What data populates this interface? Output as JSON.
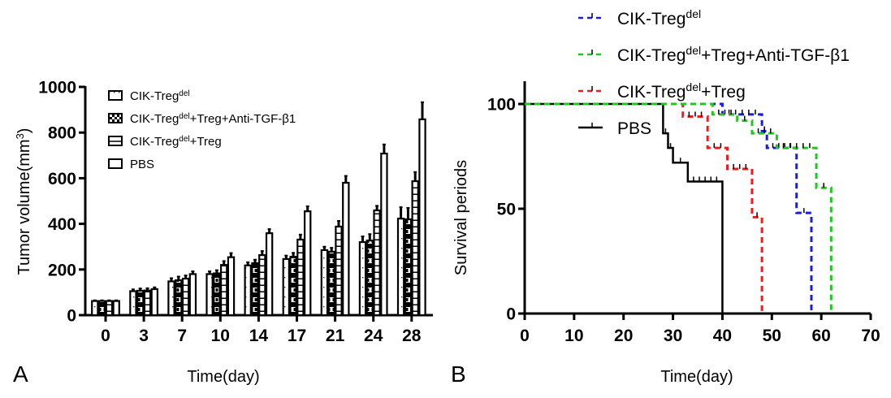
{
  "chart_data": [
    {
      "panel": "A",
      "type": "bar",
      "title": "",
      "xlabel": "Time(day)",
      "ylabel": "Tumor volume(mm³)",
      "ylabel_base": "Tumor volume(mm",
      "ylabel_sup": "3",
      "ylabel_end": ")",
      "ylim": [
        0,
        1000
      ],
      "yticks": [
        "0",
        "200",
        "400",
        "600",
        "800",
        "1000"
      ],
      "ytick_values": [
        0,
        200,
        400,
        600,
        800,
        1000
      ],
      "categories": [
        "0",
        "3",
        "7",
        "10",
        "14",
        "17",
        "21",
        "24",
        "28"
      ],
      "legend_position": "top-left",
      "series": [
        {
          "name": "CIK-Treg del",
          "label_base": "CIK-Treg",
          "label_sup": "del",
          "label_rest": "",
          "pattern": "dots",
          "values": [
            62,
            105,
            148,
            180,
            218,
            246,
            285,
            320,
            423
          ],
          "errors": [
            3,
            8,
            14,
            12,
            14,
            15,
            15,
            25,
            50
          ]
        },
        {
          "name": "CIK-Treg del + Treg + Anti-TGF-β1",
          "label_base": "CIK-Treg",
          "label_sup": "del",
          "label_rest": "+Treg+Anti-TGF-β1",
          "pattern": "checker",
          "values": [
            62,
            107,
            153,
            183,
            228,
            256,
            278,
            327,
            420
          ],
          "errors": [
            3,
            10,
            16,
            14,
            15,
            17,
            17,
            28,
            50
          ]
        },
        {
          "name": "CIK-Treg del + Treg",
          "label_base": "CIK-Treg",
          "label_sup": "del",
          "label_rest": "+Treg",
          "pattern": "hlines",
          "values": [
            62,
            108,
            160,
            220,
            263,
            331,
            388,
            459,
            587
          ],
          "errors": [
            3,
            10,
            14,
            17,
            18,
            22,
            25,
            20,
            40
          ]
        },
        {
          "name": "PBS",
          "label_base": "PBS",
          "label_sup": "",
          "label_rest": "",
          "pattern": "open",
          "values": [
            62,
            114,
            180,
            254,
            359,
            455,
            580,
            708,
            858
          ],
          "errors": [
            3,
            8,
            12,
            18,
            18,
            22,
            30,
            40,
            75
          ]
        }
      ],
      "panel_label": "A"
    },
    {
      "panel": "B",
      "type": "line",
      "subtype": "kaplan-meier step",
      "title": "",
      "xlabel": "Time(day)",
      "ylabel": "Survival periods",
      "xlim": [
        0,
        70
      ],
      "ylim": [
        0,
        100
      ],
      "xticks": [
        "0",
        "10",
        "20",
        "30",
        "40",
        "50",
        "60",
        "70"
      ],
      "xtick_values": [
        0,
        10,
        20,
        30,
        40,
        50,
        60,
        70
      ],
      "yticks": [
        "0",
        "50",
        "100"
      ],
      "ytick_values": [
        0,
        50,
        100
      ],
      "legend_position": "top",
      "series": [
        {
          "name": "CIK-Treg del",
          "label_base": "CIK-Treg",
          "label_sup": "del",
          "label_rest": "",
          "color": "#1a1aee",
          "dash": true,
          "steps": [
            [
              0,
              100
            ],
            [
              40,
              95
            ],
            [
              48,
              87
            ],
            [
              49,
              79
            ],
            [
              55,
              48
            ],
            [
              58,
              0
            ]
          ]
        },
        {
          "name": "CIK-Treg del + Treg + Anti-TGF-β1",
          "label_base": "CIK-Treg",
          "label_sup": "del",
          "label_rest": "+Treg+Anti-TGF-β1",
          "color": "#1ec81e",
          "dash": true,
          "steps": [
            [
              0,
              100
            ],
            [
              38,
              95
            ],
            [
              43,
              92
            ],
            [
              46,
              86
            ],
            [
              51,
              79
            ],
            [
              59,
              60
            ],
            [
              62,
              0
            ]
          ]
        },
        {
          "name": "CIK-Treg del + Treg",
          "label_base": "CIK-Treg",
          "label_sup": "del",
          "label_rest": "+Treg",
          "color": "#ee1c1c",
          "dash": true,
          "steps": [
            [
              0,
              100
            ],
            [
              32,
              94
            ],
            [
              37,
              79
            ],
            [
              41,
              69
            ],
            [
              46,
              46
            ],
            [
              48,
              0
            ]
          ]
        },
        {
          "name": "PBS",
          "label_base": "PBS",
          "label_sup": "",
          "label_rest": "",
          "color": "#000000",
          "dash": false,
          "steps": [
            [
              0,
              100
            ],
            [
              28,
              86
            ],
            [
              29,
              79
            ],
            [
              30,
              72
            ],
            [
              33,
              63
            ],
            [
              40,
              0
            ]
          ]
        }
      ],
      "panel_label": "B"
    }
  ]
}
